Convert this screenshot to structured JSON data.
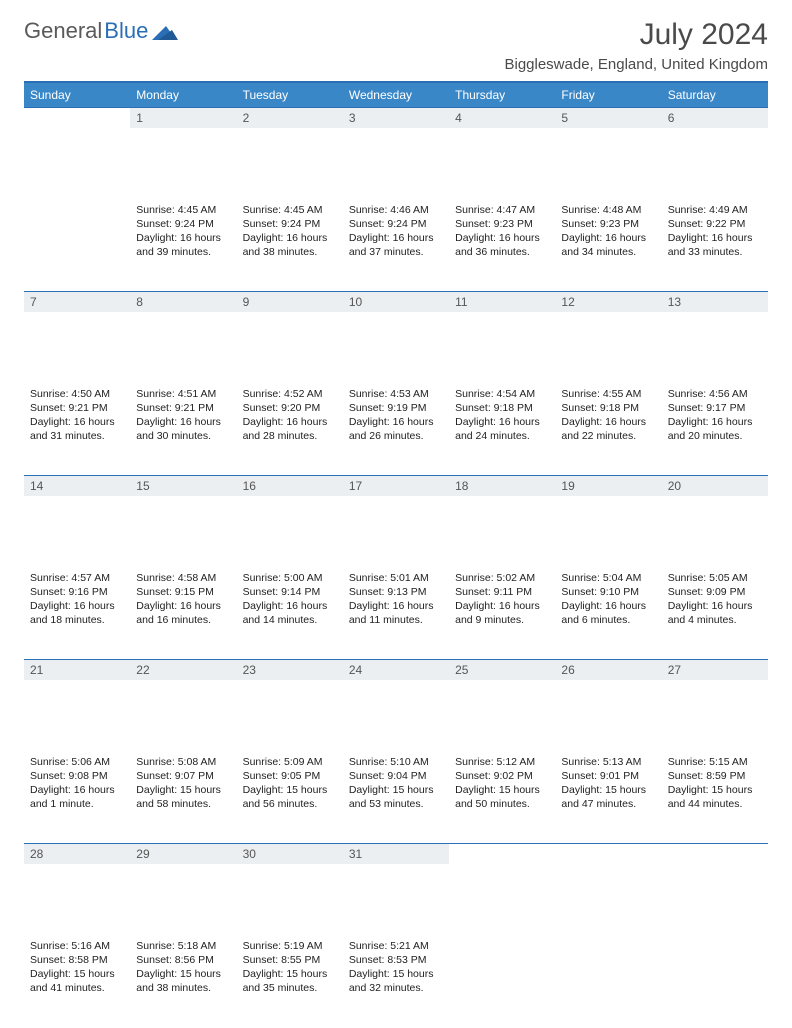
{
  "logo": {
    "text1": "General",
    "text2": "Blue"
  },
  "header": {
    "title": "July 2024",
    "location": "Biggleswade, England, United Kingdom"
  },
  "colors": {
    "header_bg": "#3a87c8",
    "header_border": "#2a6fb5",
    "daynum_bg": "#eceff2",
    "text": "#222222"
  },
  "dayHeaders": [
    "Sunday",
    "Monday",
    "Tuesday",
    "Wednesday",
    "Thursday",
    "Friday",
    "Saturday"
  ],
  "weeks": [
    [
      {
        "n": "",
        "lines": []
      },
      {
        "n": "1",
        "lines": [
          "Sunrise: 4:45 AM",
          "Sunset: 9:24 PM",
          "Daylight: 16 hours and 39 minutes."
        ]
      },
      {
        "n": "2",
        "lines": [
          "Sunrise: 4:45 AM",
          "Sunset: 9:24 PM",
          "Daylight: 16 hours and 38 minutes."
        ]
      },
      {
        "n": "3",
        "lines": [
          "Sunrise: 4:46 AM",
          "Sunset: 9:24 PM",
          "Daylight: 16 hours and 37 minutes."
        ]
      },
      {
        "n": "4",
        "lines": [
          "Sunrise: 4:47 AM",
          "Sunset: 9:23 PM",
          "Daylight: 16 hours and 36 minutes."
        ]
      },
      {
        "n": "5",
        "lines": [
          "Sunrise: 4:48 AM",
          "Sunset: 9:23 PM",
          "Daylight: 16 hours and 34 minutes."
        ]
      },
      {
        "n": "6",
        "lines": [
          "Sunrise: 4:49 AM",
          "Sunset: 9:22 PM",
          "Daylight: 16 hours and 33 minutes."
        ]
      }
    ],
    [
      {
        "n": "7",
        "lines": [
          "Sunrise: 4:50 AM",
          "Sunset: 9:21 PM",
          "Daylight: 16 hours and 31 minutes."
        ]
      },
      {
        "n": "8",
        "lines": [
          "Sunrise: 4:51 AM",
          "Sunset: 9:21 PM",
          "Daylight: 16 hours and 30 minutes."
        ]
      },
      {
        "n": "9",
        "lines": [
          "Sunrise: 4:52 AM",
          "Sunset: 9:20 PM",
          "Daylight: 16 hours and 28 minutes."
        ]
      },
      {
        "n": "10",
        "lines": [
          "Sunrise: 4:53 AM",
          "Sunset: 9:19 PM",
          "Daylight: 16 hours and 26 minutes."
        ]
      },
      {
        "n": "11",
        "lines": [
          "Sunrise: 4:54 AM",
          "Sunset: 9:18 PM",
          "Daylight: 16 hours and 24 minutes."
        ]
      },
      {
        "n": "12",
        "lines": [
          "Sunrise: 4:55 AM",
          "Sunset: 9:18 PM",
          "Daylight: 16 hours and 22 minutes."
        ]
      },
      {
        "n": "13",
        "lines": [
          "Sunrise: 4:56 AM",
          "Sunset: 9:17 PM",
          "Daylight: 16 hours and 20 minutes."
        ]
      }
    ],
    [
      {
        "n": "14",
        "lines": [
          "Sunrise: 4:57 AM",
          "Sunset: 9:16 PM",
          "Daylight: 16 hours and 18 minutes."
        ]
      },
      {
        "n": "15",
        "lines": [
          "Sunrise: 4:58 AM",
          "Sunset: 9:15 PM",
          "Daylight: 16 hours and 16 minutes."
        ]
      },
      {
        "n": "16",
        "lines": [
          "Sunrise: 5:00 AM",
          "Sunset: 9:14 PM",
          "Daylight: 16 hours and 14 minutes."
        ]
      },
      {
        "n": "17",
        "lines": [
          "Sunrise: 5:01 AM",
          "Sunset: 9:13 PM",
          "Daylight: 16 hours and 11 minutes."
        ]
      },
      {
        "n": "18",
        "lines": [
          "Sunrise: 5:02 AM",
          "Sunset: 9:11 PM",
          "Daylight: 16 hours and 9 minutes."
        ]
      },
      {
        "n": "19",
        "lines": [
          "Sunrise: 5:04 AM",
          "Sunset: 9:10 PM",
          "Daylight: 16 hours and 6 minutes."
        ]
      },
      {
        "n": "20",
        "lines": [
          "Sunrise: 5:05 AM",
          "Sunset: 9:09 PM",
          "Daylight: 16 hours and 4 minutes."
        ]
      }
    ],
    [
      {
        "n": "21",
        "lines": [
          "Sunrise: 5:06 AM",
          "Sunset: 9:08 PM",
          "Daylight: 16 hours and 1 minute."
        ]
      },
      {
        "n": "22",
        "lines": [
          "Sunrise: 5:08 AM",
          "Sunset: 9:07 PM",
          "Daylight: 15 hours and 58 minutes."
        ]
      },
      {
        "n": "23",
        "lines": [
          "Sunrise: 5:09 AM",
          "Sunset: 9:05 PM",
          "Daylight: 15 hours and 56 minutes."
        ]
      },
      {
        "n": "24",
        "lines": [
          "Sunrise: 5:10 AM",
          "Sunset: 9:04 PM",
          "Daylight: 15 hours and 53 minutes."
        ]
      },
      {
        "n": "25",
        "lines": [
          "Sunrise: 5:12 AM",
          "Sunset: 9:02 PM",
          "Daylight: 15 hours and 50 minutes."
        ]
      },
      {
        "n": "26",
        "lines": [
          "Sunrise: 5:13 AM",
          "Sunset: 9:01 PM",
          "Daylight: 15 hours and 47 minutes."
        ]
      },
      {
        "n": "27",
        "lines": [
          "Sunrise: 5:15 AM",
          "Sunset: 8:59 PM",
          "Daylight: 15 hours and 44 minutes."
        ]
      }
    ],
    [
      {
        "n": "28",
        "lines": [
          "Sunrise: 5:16 AM",
          "Sunset: 8:58 PM",
          "Daylight: 15 hours and 41 minutes."
        ]
      },
      {
        "n": "29",
        "lines": [
          "Sunrise: 5:18 AM",
          "Sunset: 8:56 PM",
          "Daylight: 15 hours and 38 minutes."
        ]
      },
      {
        "n": "30",
        "lines": [
          "Sunrise: 5:19 AM",
          "Sunset: 8:55 PM",
          "Daylight: 15 hours and 35 minutes."
        ]
      },
      {
        "n": "31",
        "lines": [
          "Sunrise: 5:21 AM",
          "Sunset: 8:53 PM",
          "Daylight: 15 hours and 32 minutes."
        ]
      },
      {
        "n": "",
        "lines": []
      },
      {
        "n": "",
        "lines": []
      },
      {
        "n": "",
        "lines": []
      }
    ]
  ]
}
